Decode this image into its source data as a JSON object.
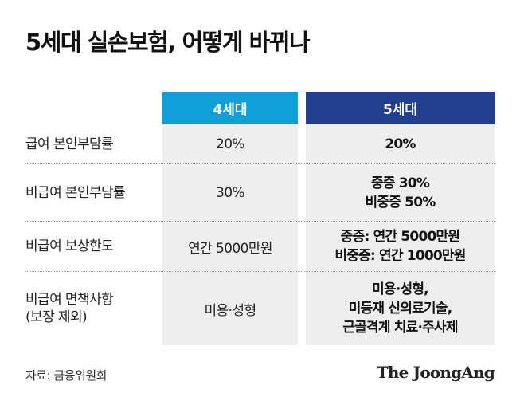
{
  "title": "5세대 실손보험, 어떻게 바뀌나",
  "table": {
    "headers": {
      "gen4": "4세대",
      "gen5": "5세대"
    },
    "rows": [
      {
        "label": "급여 본인부담률",
        "gen4": "20%",
        "gen5": "20%"
      },
      {
        "label": "비급여 본인부담률",
        "gen4": "30%",
        "gen5": "중증 30%\n비중증 50%"
      },
      {
        "label": "비급여 보상한도",
        "gen4": "연간 5000만원",
        "gen5": "중증: 연간 5000만원\n비중증: 연간 1000만원"
      },
      {
        "label": "비급여 면책사항\n(보장 제외)",
        "gen4": "미용·성형",
        "gen5": "미용·성형,\n미등재 신의료기술,\n근골격계 치료·주사제"
      }
    ]
  },
  "colors": {
    "gen4_header": "#0f9fd6",
    "gen5_header": "#223f8f"
  },
  "source": "자료: 금융위원회",
  "brand": "The JoongAng"
}
